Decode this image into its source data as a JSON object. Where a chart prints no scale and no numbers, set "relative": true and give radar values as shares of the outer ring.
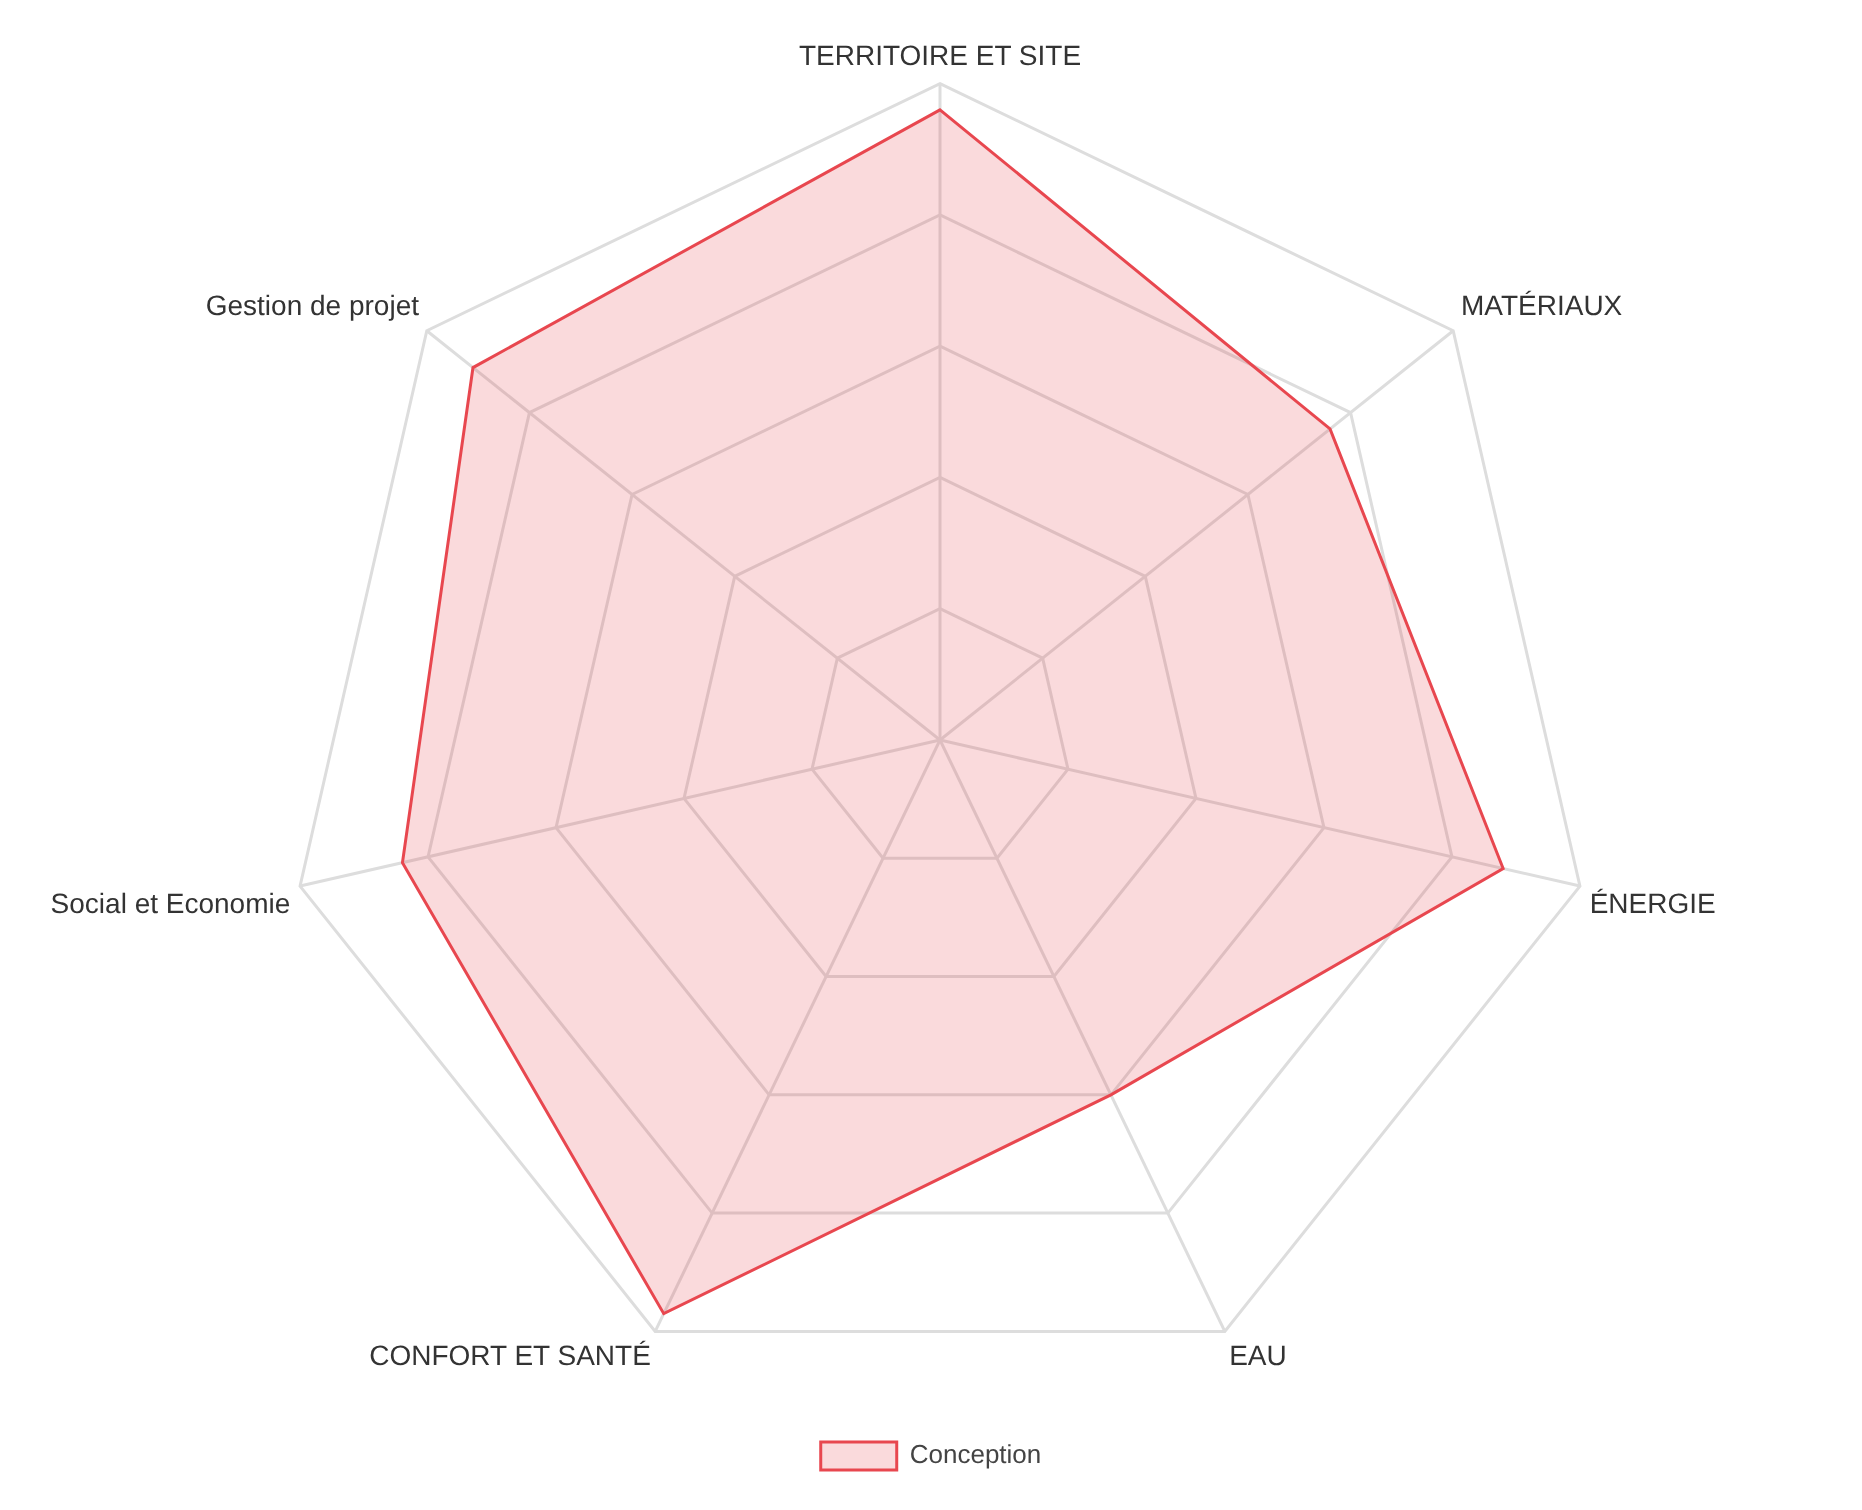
{
  "chart_data": {
    "type": "radar",
    "relative": true,
    "legend": "bottom",
    "categories": [
      "TERRITOIRE ET SITE",
      "MATÉRIAUX",
      "ÉNERGIE",
      "EAU",
      "CONFORT ET SANTÉ",
      "Social et Economie",
      "Gestion de projet"
    ],
    "series": [
      {
        "name": "Conception",
        "color": "#e8474f",
        "values": [
          0.96,
          0.76,
          0.88,
          0.6,
          0.97,
          0.84,
          0.91
        ]
      }
    ]
  }
}
